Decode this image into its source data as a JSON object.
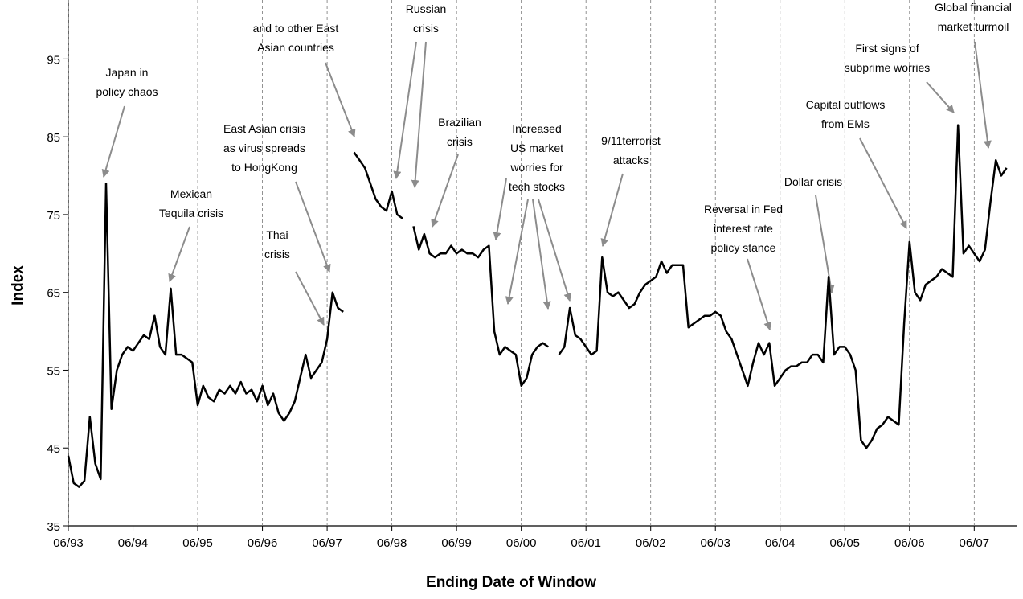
{
  "chart_data": {
    "type": "line",
    "x_label": "Ending Date of Window",
    "y_label": "Index",
    "color": "#000000",
    "xlim": [
      "06/93",
      "02/08"
    ],
    "xticks": [
      "06/93",
      "06/94",
      "06/95",
      "06/96",
      "06/97",
      "06/98",
      "06/99",
      "06/00",
      "06/01",
      "06/02",
      "06/03",
      "06/04",
      "06/05",
      "06/06",
      "06/07"
    ],
    "ylim": [
      35,
      100
    ],
    "yticks": [
      35,
      45,
      55,
      65,
      75,
      85,
      95
    ],
    "x": [
      "06/93",
      "07/93",
      "08/93",
      "09/93",
      "10/93",
      "11/93",
      "12/93",
      "01/94",
      "02/94",
      "03/94",
      "04/94",
      "05/94",
      "06/94",
      "07/94",
      "08/94",
      "09/94",
      "10/94",
      "11/94",
      "12/94",
      "01/95",
      "02/95",
      "03/95",
      "04/95",
      "05/95",
      "06/95",
      "07/95",
      "08/95",
      "09/95",
      "10/95",
      "11/95",
      "12/95",
      "01/96",
      "02/96",
      "03/96",
      "04/96",
      "05/96",
      "06/96",
      "07/96",
      "08/96",
      "09/96",
      "10/96",
      "11/96",
      "12/96",
      "01/97",
      "02/97",
      "03/97",
      "04/97",
      "05/97",
      "06/97",
      "07/97",
      "08/97",
      "09/97",
      "10/97",
      "11/97",
      "12/97",
      "01/98",
      "02/98",
      "03/98",
      "04/98",
      "05/98",
      "06/98",
      "07/98",
      "08/98",
      "09/98",
      "10/98",
      "11/98",
      "12/98",
      "01/99",
      "02/99",
      "03/99",
      "04/99",
      "05/99",
      "06/99",
      "07/99",
      "08/99",
      "09/99",
      "10/99",
      "11/99",
      "12/99",
      "01/00",
      "02/00",
      "03/00",
      "04/00",
      "05/00",
      "06/00",
      "07/00",
      "08/00",
      "09/00",
      "10/00",
      "11/00",
      "12/00",
      "01/01",
      "02/01",
      "03/01",
      "04/01",
      "05/01",
      "06/01",
      "07/01",
      "08/01",
      "09/01",
      "10/01",
      "11/01",
      "12/01",
      "01/02",
      "02/02",
      "03/02",
      "04/02",
      "05/02",
      "06/02",
      "07/02",
      "08/02",
      "09/02",
      "10/02",
      "11/02",
      "12/02",
      "01/03",
      "02/03",
      "03/03",
      "04/03",
      "05/03",
      "06/03",
      "07/03",
      "08/03",
      "09/03",
      "10/03",
      "11/03",
      "12/03",
      "01/04",
      "02/04",
      "03/04",
      "04/04",
      "05/04",
      "06/04",
      "07/04",
      "08/04",
      "09/04",
      "10/04",
      "11/04",
      "12/04",
      "01/05",
      "02/05",
      "03/05",
      "04/05",
      "05/05",
      "06/05",
      "07/05",
      "08/05",
      "09/05",
      "10/05",
      "11/05",
      "12/05",
      "01/06",
      "02/06",
      "03/06",
      "04/06",
      "05/06",
      "06/06",
      "07/06",
      "08/06",
      "09/06",
      "10/06",
      "11/06",
      "12/06",
      "01/07",
      "02/07",
      "03/07",
      "04/07",
      "05/07",
      "06/07",
      "07/07",
      "08/07",
      "09/07",
      "10/07",
      "11/07",
      "12/07"
    ],
    "values": [
      44,
      40.5,
      40,
      40.8,
      49,
      43,
      41,
      79,
      50,
      55,
      57,
      58,
      57.5,
      58.5,
      59.5,
      59,
      62,
      58,
      57,
      65.5,
      57,
      57,
      56.5,
      56,
      50.5,
      53,
      51.5,
      51,
      52.5,
      52,
      53,
      52,
      53.5,
      52,
      52.5,
      51,
      53,
      50.5,
      52,
      49.5,
      48.5,
      49.5,
      51,
      54,
      57,
      54,
      55,
      56,
      59,
      65,
      63,
      62.5,
      null,
      83,
      82,
      81,
      79,
      77,
      76,
      75.5,
      78,
      75,
      74.5,
      null,
      73.5,
      70.5,
      72.5,
      70,
      69.5,
      70,
      70,
      71,
      70,
      70.5,
      70,
      70,
      69.5,
      70.5,
      71,
      60,
      57,
      58,
      57.5,
      57,
      53,
      54,
      57,
      58,
      58.5,
      58,
      null,
      57,
      58,
      63,
      59.5,
      59,
      58,
      57,
      57.5,
      69.5,
      65,
      64.5,
      65,
      64,
      63,
      63.5,
      65,
      66,
      66.5,
      67,
      69,
      67.5,
      68.5,
      68.5,
      68.5,
      60.5,
      61,
      61.5,
      62,
      62,
      62.5,
      62,
      60,
      59,
      57,
      55,
      53,
      56,
      58.5,
      57,
      58.5,
      53,
      54,
      55,
      55.5,
      55.5,
      56,
      56,
      57,
      57,
      56,
      67,
      57,
      58,
      58,
      57,
      55,
      46,
      45,
      46,
      47.5,
      48,
      49,
      48.5,
      48,
      61,
      71.5,
      65,
      64,
      66,
      66.5,
      67,
      68,
      67.5,
      67,
      86.5,
      70,
      71,
      70,
      69,
      70.5,
      76.5,
      82,
      80,
      81
    ],
    "annotations": [
      {
        "lines": [
          "Japan in",
          "policy chaos"
        ]
      },
      {
        "lines": [
          "Mexican",
          "Tequila crisis"
        ]
      },
      {
        "lines": [
          "Thai",
          "crisis"
        ]
      },
      {
        "lines": [
          "East Asian crisis",
          "as virus spreads",
          "to HongKong"
        ]
      },
      {
        "lines": [
          "and to other East",
          "Asian countries"
        ]
      },
      {
        "lines": [
          "Russian",
          "crisis"
        ]
      },
      {
        "lines": [
          "Brazilian",
          "crisis"
        ]
      },
      {
        "lines": [
          "Increased",
          "US market",
          "worries for",
          "tech stocks"
        ]
      },
      {
        "lines": [
          "9/11terrorist",
          "attacks"
        ]
      },
      {
        "lines": [
          "Reversal in Fed",
          "interest rate",
          "policy stance"
        ]
      },
      {
        "lines": [
          "Dollar crisis"
        ]
      },
      {
        "lines": [
          "Capital outflows",
          "from EMs"
        ]
      },
      {
        "lines": [
          "First signs of",
          "subprime worries"
        ]
      },
      {
        "lines": [
          "Global financial",
          "market turmoil"
        ]
      }
    ]
  }
}
